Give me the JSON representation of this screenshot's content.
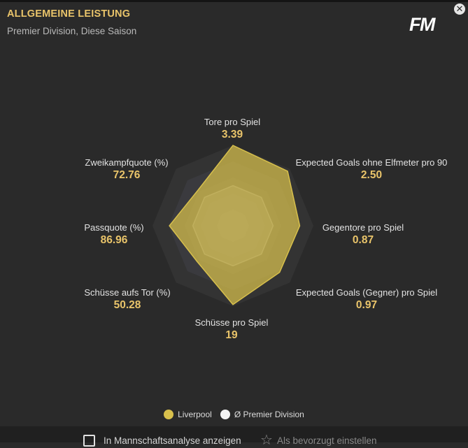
{
  "header": {
    "title": "ALLGEMEINE LEISTUNG",
    "subtitle": "Premier Division, Diese Saison",
    "logo": "FM",
    "close_icon": "close-icon"
  },
  "chart_data": {
    "type": "radar",
    "axes": [
      {
        "label": "Tore pro Spiel",
        "value_label": "3.39"
      },
      {
        "label": "Expected Goals ohne Elfmeter pro 90",
        "value_label": "2.50"
      },
      {
        "label": "Gegentore pro Spiel",
        "value_label": "0.87"
      },
      {
        "label": "Expected Goals (Gegner) pro Spiel",
        "value_label": "0.97"
      },
      {
        "label": "Schüsse pro Spiel",
        "value_label": "19"
      },
      {
        "label": "Schüsse aufs Tor (%)",
        "value_label": "50.28"
      },
      {
        "label": "Passquote (%)",
        "value_label": "86.96"
      },
      {
        "label": "Zweikampfquote (%)",
        "value_label": "72.76"
      }
    ],
    "series": [
      {
        "name": "Liverpool",
        "color": "#d8c04c",
        "values": [
          1.0,
          0.96,
          0.83,
          0.82,
          0.98,
          0.63,
          0.79,
          0.62
        ]
      },
      {
        "name": "Ø Premier Division",
        "color": "#e8e8e8",
        "values": [
          0.5,
          0.5,
          0.5,
          0.5,
          0.5,
          0.5,
          0.5,
          0.5
        ]
      }
    ],
    "rings": 5,
    "legend_position": "bottom"
  },
  "legend": {
    "items": [
      {
        "label": "Liverpool",
        "color": "#d8c04c"
      },
      {
        "label": "Ø Premier Division",
        "color": "#f2f2f2"
      }
    ]
  },
  "footer": {
    "checkbox_label": "In Mannschaftsanalyse anzeigen",
    "favorite_label": "Als bevorzugt einstellen",
    "favorite_icon": "star-icon"
  }
}
